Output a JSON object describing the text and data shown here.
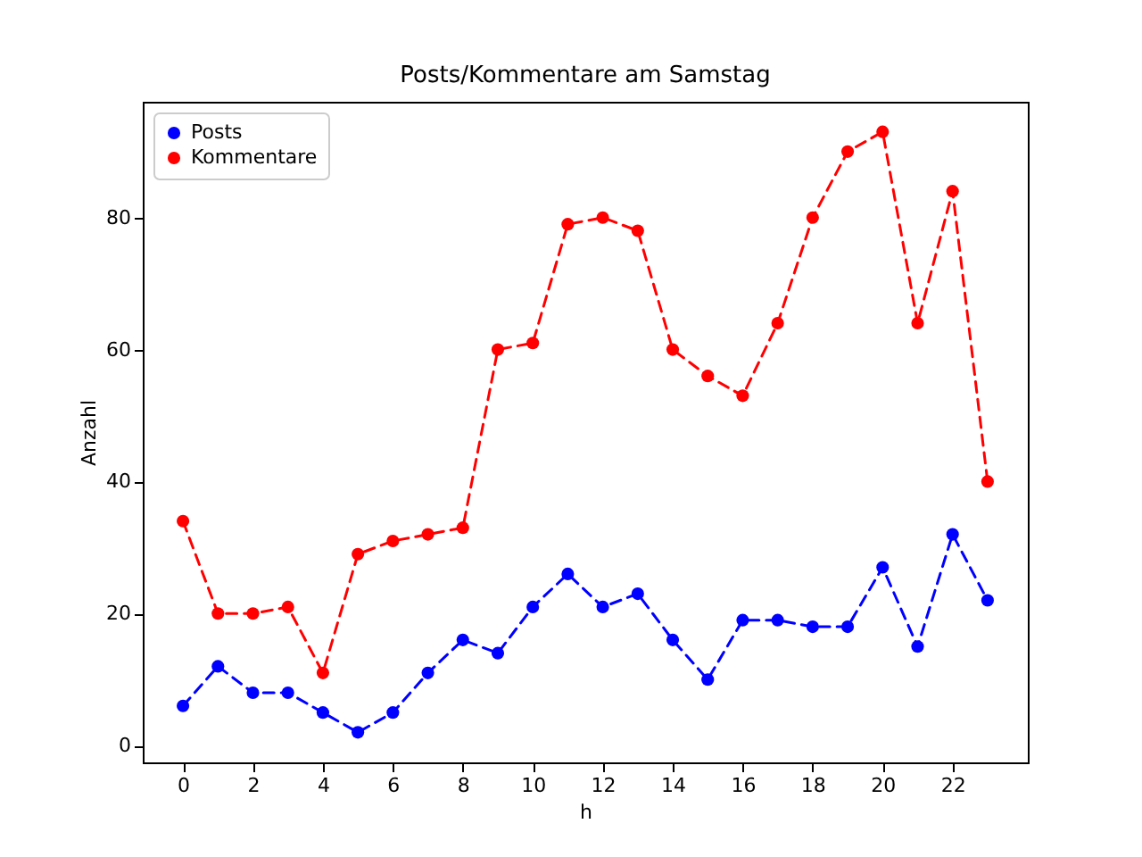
{
  "chart_data": {
    "type": "line",
    "title": "Posts/Kommentare am Samstag",
    "xlabel": "h",
    "ylabel": "Anzahl",
    "x": [
      0,
      1,
      2,
      3,
      4,
      5,
      6,
      7,
      8,
      9,
      10,
      11,
      12,
      13,
      14,
      15,
      16,
      17,
      18,
      19,
      20,
      21,
      22,
      23
    ],
    "series": [
      {
        "name": "Posts",
        "color": "#0000ff",
        "values": [
          6,
          12,
          8,
          8,
          5,
          2,
          5,
          11,
          16,
          14,
          21,
          26,
          21,
          23,
          16,
          10,
          19,
          19,
          18,
          18,
          27,
          15,
          32,
          22
        ]
      },
      {
        "name": "Kommentare",
        "color": "#ff0000",
        "values": [
          34,
          20,
          20,
          21,
          11,
          29,
          31,
          32,
          33,
          60,
          61,
          79,
          80,
          78,
          60,
          56,
          53,
          64,
          80,
          90,
          93,
          64,
          84,
          40
        ]
      }
    ],
    "xlim": [
      -1.15,
      24.15
    ],
    "ylim": [
      -2.55,
      97.55
    ],
    "xticks": [
      0,
      2,
      4,
      6,
      8,
      10,
      12,
      14,
      16,
      18,
      20,
      22
    ],
    "yticks": [
      0,
      20,
      40,
      60,
      80
    ],
    "grid": false,
    "legend": "top left",
    "marker": "circle",
    "line_style": "dashed"
  }
}
